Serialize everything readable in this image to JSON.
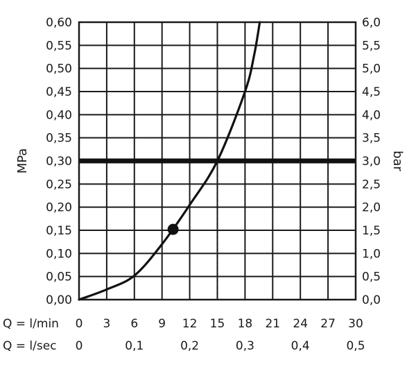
{
  "chart_data": {
    "type": "line",
    "ylabel_left": "MPa",
    "ylabel_right": "bar",
    "xlabel_min": "Q = l/min",
    "xlabel_sec": "Q = l/sec",
    "xlim": [
      0,
      30
    ],
    "ylim": [
      0,
      0.6
    ],
    "grid": true,
    "left_ticks": [
      "0,00",
      "0,05",
      "0,10",
      "0,15",
      "0,20",
      "0,25",
      "0,30",
      "0,35",
      "0,40",
      "0,45",
      "0,50",
      "0,55",
      "0,60"
    ],
    "right_ticks": [
      "0,0",
      "0,5",
      "1,0",
      "1,5",
      "2,0",
      "2,5",
      "3,0",
      "3,5",
      "4,0",
      "4,5",
      "5,0",
      "5,5",
      "6,0"
    ],
    "x_ticks_min": [
      "0",
      "3",
      "6",
      "9",
      "12",
      "15",
      "18",
      "21",
      "24",
      "27",
      "30"
    ],
    "x_ticks_sec": [
      "0",
      "0,1",
      "0,2",
      "0,3",
      "0,4",
      "0,5"
    ],
    "series": [
      {
        "x": [
          0,
          3,
          6,
          9,
          12,
          15,
          18,
          19,
          19.6
        ],
        "y": [
          0,
          0.022,
          0.052,
          0.12,
          0.205,
          0.3,
          0.45,
          0.53,
          0.6
        ]
      }
    ],
    "reference_line": {
      "y": 0.3
    },
    "reference_drop": {
      "x": 15,
      "y": 0.3
    },
    "marker": {
      "x": 10.2,
      "y": 0.152
    }
  }
}
